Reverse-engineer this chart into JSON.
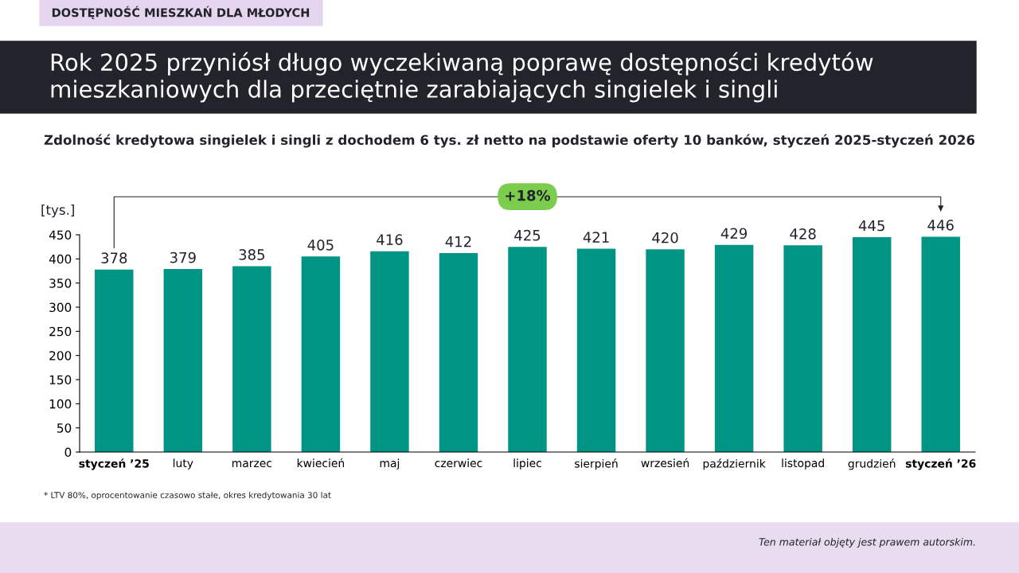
{
  "chart_data": {
    "type": "bar",
    "title": "Rok 2025 przyniósł długo wyczekiwaną poprawę dostępności kredytów\nmieszkaniowych dla przeciętnie zarabiających singielek i singli",
    "subtitle": "Zdolność kredytowa singielek i singli z dochodem 6 tys. zł netto na podstawie oferty 10 banków, styczeń 2025-styczeń 2026",
    "ylabel": "[tys.]",
    "categories": [
      "styczeń ’25",
      "luty",
      "marzec",
      "kwiecień",
      "maj",
      "czerwiec",
      "lipiec",
      "sierpień",
      "wrzesień",
      "październik",
      "listopad",
      "grudzień",
      "styczeń ’26"
    ],
    "values": [
      378,
      379,
      385,
      405,
      416,
      412,
      425,
      421,
      420,
      429,
      428,
      445,
      446
    ],
    "color": "#009485",
    "ylim": [
      0,
      450
    ],
    "yticks": [
      0,
      50,
      100,
      150,
      200,
      250,
      300,
      350,
      400,
      450
    ],
    "grid": false,
    "data_labels": true,
    "annotations": [
      "DOSTĘPNOŚĆ MIESZKAŃ DLA MŁODYCH",
      "+18%",
      "* LTV 80%, oprocentowanie czasowo stałe, okres kredytowania 30 lat",
      "Ten materiał objęty jest prawem autorskim."
    ]
  }
}
